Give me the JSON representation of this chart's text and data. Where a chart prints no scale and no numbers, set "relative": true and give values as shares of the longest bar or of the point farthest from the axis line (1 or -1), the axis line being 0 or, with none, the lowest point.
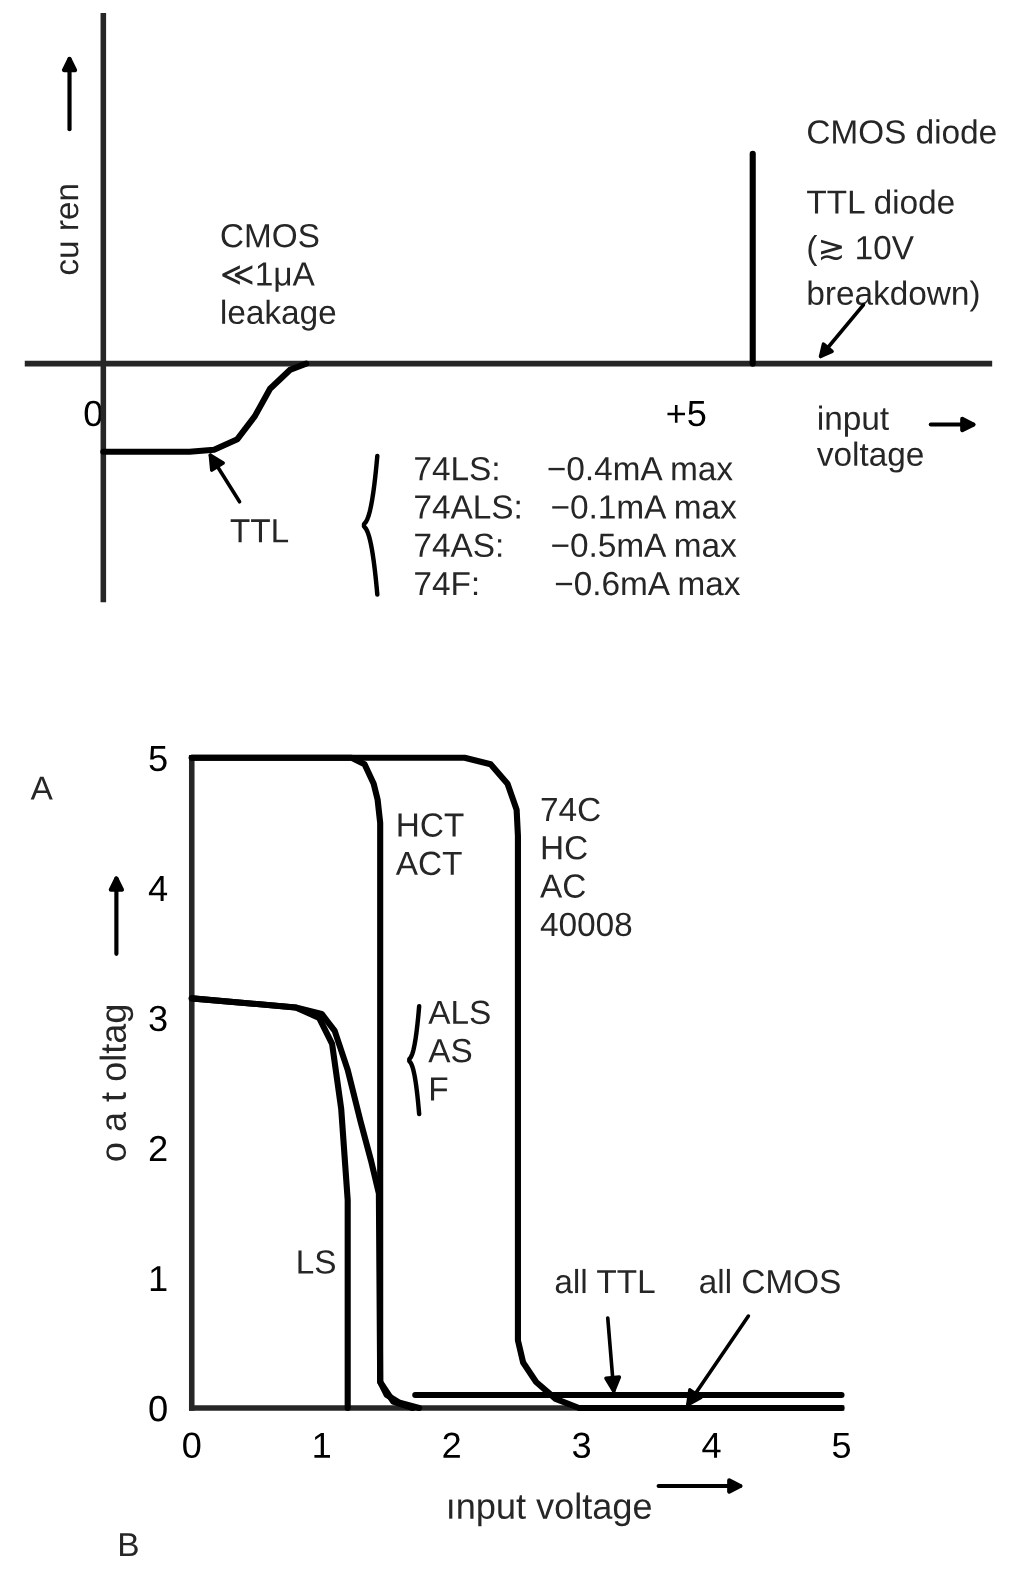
{
  "chart_data": [
    {
      "type": "line",
      "relative": true,
      "xlim": [
        -0.65,
        7.6
      ],
      "xticks": [
        {
          "value": 0,
          "label": "0"
        },
        {
          "value": 5,
          "label": "+5"
        }
      ],
      "xlabel": "input\nvoltage",
      "ylabel": "cu ren",
      "series": [
        {
          "color": "#000000",
          "x": [
            0,
            0.5,
            0.74,
            0.95,
            1.15,
            1.3,
            1.43,
            1.6,
            1.74
          ],
          "values": [
            -0.42,
            -0.42,
            -0.42,
            -0.41,
            -0.36,
            -0.25,
            -0.12,
            -0.03,
            0
          ]
        },
        {
          "color": "#000000",
          "x": [
            5.57,
            5.57
          ],
          "values": [
            0,
            1
          ]
        }
      ],
      "annotations": [
        "CMOS\n≪1μA\nleakage",
        "CMOS diode",
        "TTL diode\n(≳ 10V\nbreakdown)",
        {
          "text": "TTL",
          "x": 0.9,
          "y": -0.42
        },
        "74LS:     −0.4mA max\n74ALS:   −0.1mA max\n74AS:     −0.5mA max\n74F:        −0.6mA max",
        "A"
      ]
    },
    {
      "type": "line",
      "xlim": [
        0,
        5
      ],
      "ylim": [
        0,
        5
      ],
      "xticks": [
        0,
        1,
        2,
        3,
        4,
        5
      ],
      "yticks": [
        0,
        1,
        2,
        3,
        4,
        5
      ],
      "xlabel": "ınput voltage",
      "ylabel": "o a t oltag",
      "series": [
        {
          "color": "#000000",
          "x": [
            0,
            2.1,
            2.3,
            2.43,
            2.5,
            2.51,
            2.51,
            2.55,
            2.65,
            2.8,
            2.98,
            5
          ],
          "values": [
            5,
            5,
            4.95,
            4.8,
            4.6,
            4.4,
            0.52,
            0.35,
            0.2,
            0.07,
            0,
            0
          ]
        },
        {
          "color": "#000000",
          "x": [
            0,
            1.23,
            1.33,
            1.4,
            1.43,
            1.45,
            1.45,
            1.5,
            1.6,
            1.75
          ],
          "values": [
            5,
            5,
            4.95,
            4.8,
            4.68,
            4.5,
            0.2,
            0.1,
            0.04,
            0
          ]
        },
        {
          "color": "#000000",
          "x": [
            0,
            0.8,
            1.0,
            1.1,
            1.2,
            1.3,
            1.38,
            1.44,
            1.45,
            1.55,
            1.7
          ],
          "values": [
            3.15,
            3.08,
            3.03,
            2.9,
            2.6,
            2.2,
            1.9,
            1.65,
            0.2,
            0.05,
            0
          ]
        },
        {
          "color": "#000000",
          "x": [
            0,
            0.8,
            0.98,
            1.08,
            1.15,
            1.2,
            1.2
          ],
          "values": [
            3.15,
            3.08,
            3.0,
            2.8,
            2.3,
            1.6,
            0
          ]
        },
        {
          "color": "#000000",
          "x": [
            1.72,
            5
          ],
          "values": [
            0.1,
            0.1
          ]
        }
      ],
      "annotations": [
        "HCT\nACT",
        "74C\nHC\nAC\n40008",
        "ALS\nAS\nF",
        "LS",
        {
          "text": "all TTL",
          "x": 3.25,
          "y": 0.1
        },
        {
          "text": "all CMOS",
          "x": 3.8,
          "y": 0
        },
        "B"
      ]
    }
  ]
}
